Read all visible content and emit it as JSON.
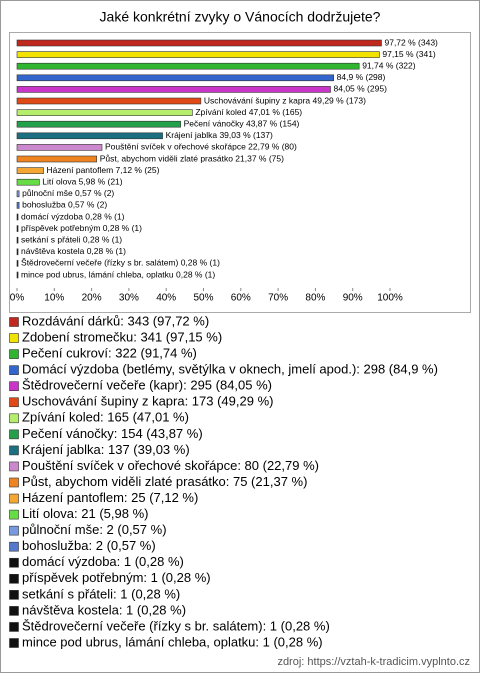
{
  "chart_data": {
    "type": "bar",
    "orientation": "horizontal",
    "title": "Jaké konkrétní zvyky o Vánocích dodržujete?",
    "source": "zdroj: https://vztah-k-tradicim.vyplnto.cz",
    "categories": [
      "Rozdávání dárků",
      "Zdobení stromečku",
      "Pečení cukroví",
      "Domácí výzdoba (betlémy, světýlka v oknech, jmelí apod.)",
      "Štědrovečerní večeře (kapr)",
      "Uschovávání šupiny z kapra",
      "Zpívání koled",
      "Pečení vánočky",
      "Krájení jablka",
      "Pouštění svíček v ořechové skořápce",
      "Půst, abychom viděli zlaté prasátko",
      "Házení pantoflem",
      "Lití olova",
      "půlnoční mše",
      "bohoslužba",
      "domácí výzdoba",
      "příspěvek potřebným",
      "setkání s přáteli",
      "návštěva kostela",
      "Štědrovečerní večeře (řízky s br. salátem)",
      "mince pod ubrus, lámání chleba, oplatku"
    ],
    "values": [
      97.72,
      97.15,
      91.74,
      84.9,
      84.05,
      49.29,
      47.01,
      43.87,
      39.03,
      22.79,
      21.37,
      7.12,
      5.98,
      0.57,
      0.57,
      0.28,
      0.28,
      0.28,
      0.28,
      0.28,
      0.28
    ],
    "value_labels": [
      "97,72 % (343)",
      "97,15 % (341)",
      "91,74 % (322)",
      "84,9 % (298)",
      "84,05 % (295)",
      "Uschovávání šupiny z kapra 49,29 % (173)",
      "Zpívání koled 47,01 % (165)",
      "Pečení vánočky 43,87 % (154)",
      "Krájení jablka 39,03 % (137)",
      "Pouštění svíček v ořechové skořápce 22,79 % (80)",
      "Půst, abychom viděli zlaté prasátko 21,37 % (75)",
      "Házení pantoflem 7,12 % (25)",
      "Lití olova 5,98 % (21)",
      "půlnoční mše 0,57 % (2)",
      "bohoslužba 0,57 % (2)",
      "domácí výzdoba 0,28 % (1)",
      "příspěvek potřebným 0,28 % (1)",
      "setkání s přáteli 0,28 % (1)",
      "návštěva kostela 0,28 % (1)",
      "Štědrovečerní večeře (řízky s br. salátem) 0,28 % (1)",
      "mince pod ubrus, lámání chleba, oplatku 0,28 % (1)"
    ],
    "legend_labels": [
      "Rozdávání dárků: 343 (97,72 %)",
      "Zdobení stromečku: 341 (97,15 %)",
      "Pečení cukroví: 322 (91,74 %)",
      "Domácí výzdoba (betlémy, světýlka v oknech, jmelí apod.): 298 (84,9 %)",
      "Štědrovečerní večeře (kapr): 295 (84,05 %)",
      "Uschovávání šupiny z kapra: 173 (49,29 %)",
      "Zpívání koled: 165 (47,01 %)",
      "Pečení vánočky: 154 (43,87 %)",
      "Krájení jablka: 137 (39,03 %)",
      "Pouštění svíček v ořechové skořápce: 80 (22,79 %)",
      "Půst, abychom viděli zlaté prasátko: 75 (21,37 %)",
      "Házení pantoflem: 25 (7,12 %)",
      "Lití olova: 21 (5,98 %)",
      "půlnoční mše: 2 (0,57 %)",
      "bohoslužba: 2 (0,57 %)",
      "domácí výzdoba: 1 (0,28 %)",
      "příspěvek potřebným: 1 (0,28 %)",
      "setkání s přáteli: 1 (0,28 %)",
      "návštěva kostela: 1 (0,28 %)",
      "Štědrovečerní večeře (řízky s br. salátem): 1 (0,28 %)",
      "mince pod ubrus, lámání chleba, oplatku: 1 (0,28 %)"
    ],
    "colors": [
      "#c0281e",
      "#f2e200",
      "#2fb52f",
      "#3366cc",
      "#c934c9",
      "#e04a16",
      "#b5ee6a",
      "#23a04a",
      "#1b6f80",
      "#cc88cc",
      "#ee8420",
      "#f5a733",
      "#66dd44",
      "#7799dd",
      "#5577cc",
      "#111111",
      "#111111",
      "#111111",
      "#111111",
      "#111111",
      "#111111"
    ],
    "xlim": [
      0,
      100
    ],
    "xticks": [
      {
        "value": 0,
        "label": "0%"
      },
      {
        "value": 10,
        "label": "10%"
      },
      {
        "value": 20,
        "label": "20%"
      },
      {
        "value": 30,
        "label": "30%"
      },
      {
        "value": 40,
        "label": "40%"
      },
      {
        "value": 50,
        "label": "50%"
      },
      {
        "value": 60,
        "label": "60%"
      },
      {
        "value": 70,
        "label": "70%"
      },
      {
        "value": 80,
        "label": "80%"
      },
      {
        "value": 90,
        "label": "90%"
      },
      {
        "value": 100,
        "label": "100%"
      }
    ],
    "grid": false
  }
}
